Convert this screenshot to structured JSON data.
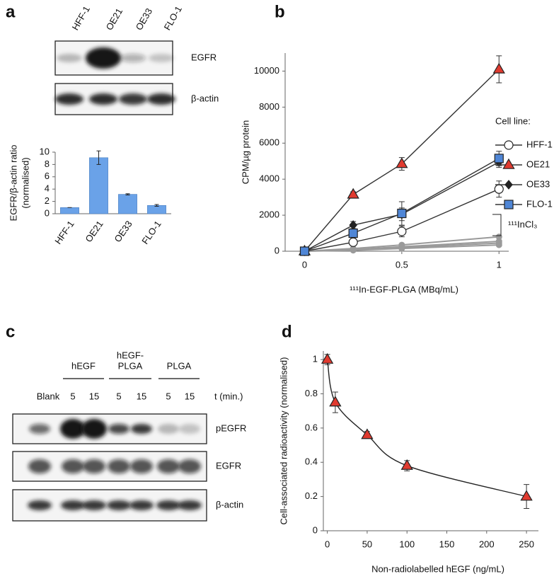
{
  "panels": [
    "a",
    "b",
    "c",
    "d"
  ],
  "blot_a": {
    "lanes": [
      "HFF-1",
      "OE21",
      "OE33",
      "FLO-1"
    ],
    "rows": [
      "EGFR",
      "β-actin"
    ]
  },
  "blot_c": {
    "groups": [
      [
        "hEGF"
      ],
      [
        "hEGF-",
        "PLGA"
      ],
      [
        "PLGA"
      ]
    ],
    "lanes": [
      "Blank",
      "5",
      "15",
      "5",
      "15",
      "5",
      "15"
    ],
    "time_label": "t (min.)",
    "rows": [
      "pEGFR",
      "EGFR",
      "β-actin"
    ]
  },
  "chart_data": [
    {
      "type": "bar",
      "y_label": [
        "EGFR/β-actin ratio",
        "(normalised)"
      ],
      "categories": [
        "HFF-1",
        "OE21",
        "OE33",
        "FLO-1"
      ],
      "values": [
        1,
        9.1,
        3.15,
        1.35
      ],
      "errors": [
        0,
        1.1,
        0.1,
        0.15
      ],
      "color": "#6aa2e8",
      "ylim": [
        0,
        10
      ],
      "yticks": [
        0,
        2,
        4,
        6,
        8,
        10
      ]
    },
    {
      "type": "line",
      "x_label": "¹¹¹In-EGF-PLGA (MBq/mL)",
      "y_label": "CPM/µg protein",
      "legend_title": "Cell line:",
      "x": [
        0,
        0.25,
        0.5,
        1
      ],
      "line_color": "#333333",
      "series": [
        {
          "name": "HFF-1",
          "color": "#ffffff",
          "marker": "circle",
          "values": [
            0,
            500,
            1100,
            3450
          ],
          "errors": [
            0,
            150,
            300,
            450
          ]
        },
        {
          "name": "OE21",
          "color": "#e03a2f",
          "marker": "triangle",
          "values": [
            0,
            3150,
            4850,
            10100
          ],
          "errors": [
            0,
            150,
            350,
            750
          ]
        },
        {
          "name": "OE33",
          "color": "#222222",
          "marker": "diamond",
          "values": [
            0,
            1450,
            2050,
            4950
          ],
          "errors": [
            0,
            200,
            350,
            300
          ]
        },
        {
          "name": "FLO-1",
          "color": "#4f86d6",
          "marker": "square",
          "values": [
            0,
            1000,
            2100,
            5150
          ],
          "errors": [
            0,
            250,
            650,
            400
          ]
        }
      ],
      "control": {
        "label": "¹¹¹InCl₃",
        "color": "#9a9a9a",
        "values": [
          [
            0,
            150,
            350,
            800
          ],
          [
            0,
            100,
            250,
            550
          ],
          [
            0,
            80,
            200,
            450
          ],
          [
            0,
            50,
            150,
            350
          ]
        ]
      },
      "xlim": [
        -0.1,
        1.05
      ],
      "xticks": [
        0,
        0.5,
        1
      ],
      "ylim": [
        0,
        11000
      ],
      "yticks": [
        0,
        2000,
        4000,
        6000,
        8000,
        10000
      ]
    },
    {
      "type": "line",
      "smooth": true,
      "x_label": "Non-radiolabelled hEGF (ng/mL)",
      "y_label": "Cell-associated radioactivity (normalised)",
      "x": [
        0,
        10,
        50,
        100,
        250
      ],
      "line_color": "#222222",
      "series": [
        {
          "color": "#e03a2f",
          "marker": "triangle",
          "values": [
            1,
            0.75,
            0.56,
            0.38,
            0.2
          ],
          "errors": [
            0.03,
            0.06,
            0.02,
            0.03,
            0.07
          ]
        }
      ],
      "xlim": [
        -5,
        265
      ],
      "xticks": [
        0,
        50,
        100,
        150,
        200,
        250
      ],
      "ylim": [
        0,
        1.05
      ],
      "yticks": [
        0,
        0.2,
        0.4,
        0.6,
        0.8,
        1
      ]
    }
  ]
}
